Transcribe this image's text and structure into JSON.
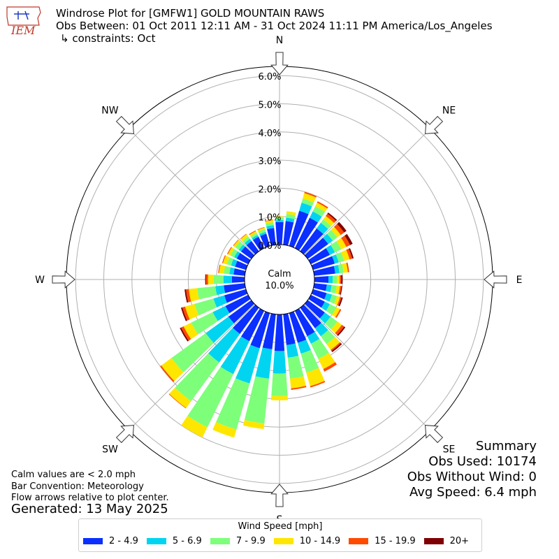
{
  "header": {
    "title": "Windrose Plot for [GMFW1] GOLD MOUNTAIN RAWS",
    "obs_between": "Obs Between: 01 Oct 2011 12:11 AM - 31 Oct 2024 11:11 PM America/Los_Angeles",
    "constraints": "↳ constraints: Oct"
  },
  "logo": {
    "text": "IEM"
  },
  "notes": {
    "calm": "Calm values are < 2.0 mph",
    "bar_convention": "Bar Convention: Meteorology",
    "flow_arrows": "Flow arrows relative to plot center.",
    "generated": "Generated: 13 May 2025"
  },
  "summary": {
    "title": "Summary",
    "obs_used": "Obs Used: 10174",
    "obs_without_wind": "Obs Without Wind: 0",
    "avg_speed": "Avg Speed: 6.4 mph"
  },
  "legend": {
    "title": "Wind Speed [mph]",
    "items": [
      {
        "label": "2 - 4.9",
        "color": "#0a2fff"
      },
      {
        "label": "5 - 6.9",
        "color": "#00d4f0"
      },
      {
        "label": "7 - 9.9",
        "color": "#7dff7a"
      },
      {
        "label": "10 - 14.9",
        "color": "#ffe600"
      },
      {
        "label": "15 - 19.9",
        "color": "#ff4a00"
      },
      {
        "label": "20+",
        "color": "#7f0000"
      }
    ]
  },
  "chart_data": {
    "type": "windrose",
    "calm_label": "Calm",
    "calm_value": "10.0%",
    "radial_ticks": [
      "0.0%",
      "1.0%",
      "2.0%",
      "3.0%",
      "4.0%",
      "5.0%",
      "6.0%"
    ],
    "radial_max": 6.2,
    "compass_labels": [
      "N",
      "NE",
      "E",
      "SE",
      "S",
      "SW",
      "W",
      "NW"
    ],
    "direction_angles_deg": [
      0,
      10,
      20,
      30,
      40,
      50,
      60,
      70,
      80,
      90,
      100,
      110,
      120,
      130,
      140,
      150,
      160,
      170,
      180,
      190,
      200,
      210,
      220,
      230,
      240,
      250,
      260,
      270,
      280,
      290,
      300,
      310,
      320,
      330,
      340,
      350
    ],
    "bins": [
      "2 - 4.9",
      "5 - 6.9",
      "7 - 9.9",
      "10 - 14.9",
      "15 - 19.9",
      "20+"
    ],
    "colors": [
      "#0a2fff",
      "#00d4f0",
      "#7dff7a",
      "#ffe600",
      "#ff4a00",
      "#7f0000"
    ],
    "cumulative": [
      [
        0.8,
        0.87,
        0.95,
        1.0,
        1.0,
        1.0
      ],
      [
        0.85,
        0.97,
        1.1,
        1.2,
        1.2,
        1.2
      ],
      [
        1.3,
        1.6,
        1.75,
        1.95,
        2.0,
        2.0
      ],
      [
        1.2,
        1.45,
        1.65,
        1.8,
        1.85,
        1.85
      ],
      [
        1.0,
        1.25,
        1.4,
        1.55,
        1.65,
        1.7
      ],
      [
        0.9,
        1.1,
        1.3,
        1.45,
        1.6,
        1.7
      ],
      [
        0.75,
        0.95,
        1.2,
        1.4,
        1.55,
        1.65
      ],
      [
        0.8,
        0.95,
        1.15,
        1.35,
        1.45,
        1.5
      ],
      [
        0.75,
        0.9,
        1.05,
        1.2,
        1.25,
        1.25
      ],
      [
        0.5,
        0.65,
        0.8,
        0.9,
        0.95,
        1.0
      ],
      [
        0.45,
        0.62,
        0.8,
        0.92,
        0.97,
        1.0
      ],
      [
        0.5,
        0.7,
        0.88,
        1.0,
        1.05,
        1.1
      ],
      [
        0.55,
        0.75,
        1.0,
        1.15,
        1.2,
        1.2
      ],
      [
        0.75,
        1.0,
        1.3,
        1.5,
        1.6,
        1.65
      ],
      [
        0.9,
        1.25,
        1.6,
        1.85,
        1.9,
        1.95
      ],
      [
        1.0,
        1.3,
        1.9,
        2.3,
        2.4,
        2.4
      ],
      [
        1.1,
        1.5,
        2.2,
        2.7,
        2.75,
        2.75
      ],
      [
        1.1,
        1.55,
        2.3,
        2.65,
        2.7,
        2.7
      ],
      [
        1.3,
        2.1,
        2.9,
        3.05,
        3.05,
        3.05
      ],
      [
        1.25,
        2.3,
        3.9,
        4.1,
        4.1,
        4.1
      ],
      [
        1.3,
        2.6,
        4.3,
        4.6,
        4.6,
        4.6
      ],
      [
        1.2,
        2.5,
        4.6,
        5.0,
        5.0,
        5.0
      ],
      [
        1.15,
        2.4,
        4.1,
        4.4,
        4.42,
        4.42
      ],
      [
        1.0,
        2.0,
        3.5,
        3.95,
        4.0,
        4.0
      ],
      [
        0.9,
        1.4,
        2.25,
        2.55,
        2.65,
        2.7
      ],
      [
        0.8,
        1.2,
        1.9,
        2.25,
        2.35,
        2.4
      ],
      [
        0.75,
        1.05,
        1.7,
        2.0,
        2.1,
        2.15
      ],
      [
        0.45,
        0.75,
        1.1,
        1.3,
        1.37,
        1.4
      ],
      [
        0.4,
        0.55,
        0.75,
        0.92,
        0.95,
        0.95
      ],
      [
        0.4,
        0.55,
        0.7,
        0.85,
        0.88,
        0.88
      ],
      [
        0.45,
        0.55,
        0.7,
        0.8,
        0.83,
        0.83
      ],
      [
        0.45,
        0.55,
        0.7,
        0.78,
        0.8,
        0.8
      ],
      [
        0.45,
        0.55,
        0.65,
        0.75,
        0.77,
        0.77
      ],
      [
        0.45,
        0.52,
        0.6,
        0.67,
        0.7,
        0.7
      ],
      [
        0.45,
        0.52,
        0.62,
        0.68,
        0.7,
        0.7
      ],
      [
        0.6,
        0.7,
        0.8,
        0.88,
        0.9,
        0.9
      ]
    ]
  }
}
